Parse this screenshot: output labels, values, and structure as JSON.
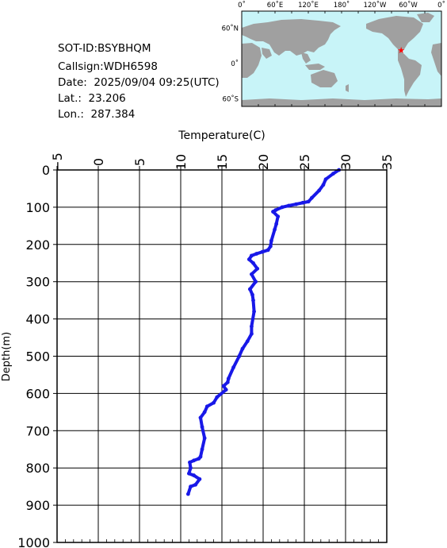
{
  "info": {
    "sot_id": "SOT-ID:BSYBHQM",
    "callsign": "Callsign:WDH6598",
    "date": "Date:  2025/09/04 09:25(UTC)",
    "lat": "Lat.:  23.206",
    "lon": "Lon.:  287.384"
  },
  "map": {
    "top_labels": [
      "0˚",
      "60˚E",
      "120˚E",
      "180˚",
      "120˚W",
      "60˚W",
      "0˚"
    ],
    "side_labels": [
      "60˚N",
      "0˚",
      "60˚S"
    ],
    "ocean_color": "#c8f4f8",
    "land_color": "#a0a0a0",
    "marker_color": "#ff0000",
    "marker_icon": "star-icon",
    "marker_lat": 23.206,
    "marker_lon": 287.384
  },
  "chart_data": {
    "type": "line",
    "xlabel": "Temperature(C)",
    "ylabel": "Depth(m)",
    "xlim": [
      -5,
      35
    ],
    "ylim": [
      0,
      1000
    ],
    "y_inverted": true,
    "x_ticks": [
      -5,
      0,
      5,
      10,
      15,
      20,
      25,
      30,
      35
    ],
    "y_ticks": [
      0,
      100,
      200,
      300,
      400,
      500,
      600,
      700,
      800,
      900,
      1000
    ],
    "grid": true,
    "line_color": "#1818e8",
    "series": [
      {
        "x": [
          29.2,
          28.5,
          27.6,
          27.3,
          26.8,
          25.9,
          25.5,
          24.8,
          24.0,
          23.1,
          22.3,
          21.5,
          21.2,
          21.8,
          21.6,
          21.4,
          21.0,
          20.9,
          20.6,
          19.9,
          19.2,
          18.6,
          18.3,
          18.8,
          19.3,
          18.6,
          19.1,
          18.4,
          18.7,
          18.8,
          18.9,
          18.6,
          18.6,
          18.1,
          17.5,
          17.1,
          16.4,
          15.8,
          15.7,
          15.2,
          15.5,
          14.4,
          14.0,
          13.2,
          12.9,
          12.4,
          12.6,
          12.9,
          12.6,
          12.4,
          12.2,
          11.6,
          11.1,
          11.2,
          11.0,
          11.6,
          12.3,
          11.8,
          11.2,
          10.9
        ],
        "y": [
          0,
          10,
          25,
          40,
          55,
          75,
          85,
          88,
          92,
          96,
          100,
          108,
          112,
          125,
          145,
          160,
          190,
          205,
          215,
          220,
          225,
          230,
          240,
          250,
          265,
          280,
          300,
          320,
          335,
          350,
          380,
          420,
          440,
          460,
          480,
          500,
          530,
          560,
          570,
          580,
          590,
          610,
          625,
          635,
          650,
          665,
          690,
          720,
          750,
          770,
          775,
          780,
          785,
          800,
          815,
          820,
          830,
          845,
          850,
          870
        ]
      }
    ]
  }
}
